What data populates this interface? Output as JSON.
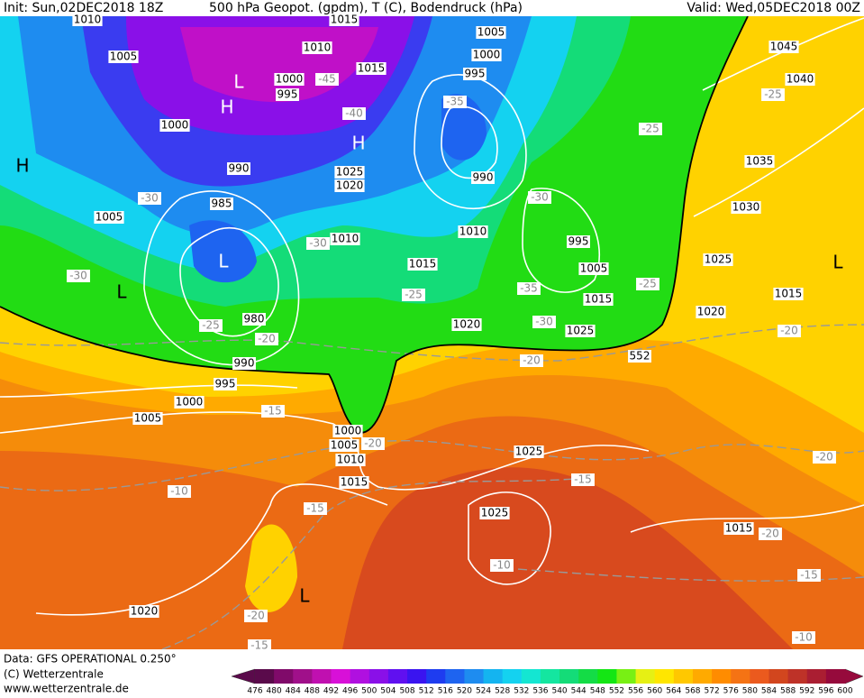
{
  "header": {
    "init": "Init: Sun,02DEC2018 18Z",
    "title": "500 hPa Geopot. (gpdm), T (C), Bodendruck (hPa)",
    "valid": "Valid: Wed,05DEC2018 00Z"
  },
  "footer": {
    "data": "Data: GFS OPERATIONAL 0.250°",
    "copyright": "(C) Wetterzentrale",
    "url": "www.wetterzentrale.de"
  },
  "scale": {
    "labels": [
      "476",
      "480",
      "484",
      "488",
      "492",
      "496",
      "500",
      "504",
      "508",
      "512",
      "516",
      "520",
      "524",
      "528",
      "532",
      "536",
      "540",
      "544",
      "548",
      "552",
      "556",
      "560",
      "564",
      "568",
      "572",
      "576",
      "580",
      "584",
      "588",
      "592",
      "596",
      "600"
    ],
    "colors": [
      "#5a0a4b",
      "#800a6a",
      "#a0108a",
      "#c010b0",
      "#d810d8",
      "#b010e0",
      "#8a10e8",
      "#6010f0",
      "#3a14f0",
      "#1e3cf0",
      "#1e64f0",
      "#1e8cf0",
      "#14b4f0",
      "#14d2f0",
      "#14e6d2",
      "#14e6a0",
      "#14dc78",
      "#14dc46",
      "#14e614",
      "#78f014",
      "#e6f014",
      "#ffe600",
      "#ffc800",
      "#ffaa00",
      "#ff8c00",
      "#f57314",
      "#eb5a1e",
      "#d2461e",
      "#be3228",
      "#aa1e32",
      "#960a3c"
    ]
  },
  "pressure_labels": [
    "1010",
    "1015",
    "1005",
    "1005",
    "1010",
    "1000",
    "1045",
    "1015",
    "1000",
    "995",
    "1040",
    "995",
    "1000",
    "1035",
    "990",
    "1025",
    "1020",
    "990",
    "985",
    "1030",
    "1005",
    "1010",
    "1010",
    "995",
    "1025",
    "1015",
    "1005",
    "1015",
    "1015",
    "980",
    "1020",
    "1020",
    "1025",
    "990",
    "995",
    "1000",
    "1005",
    "1000",
    "1005",
    "1010",
    "1025",
    "1015",
    "1025",
    "1015",
    "1020"
  ],
  "temperature_labels": [
    "-45",
    "-40",
    "-35",
    "-25",
    "-25",
    "-30",
    "-30",
    "-30",
    "-30",
    "-25",
    "-35",
    "-25",
    "-30",
    "-25",
    "-20",
    "-20",
    "-20",
    "-15",
    "-20",
    "-20",
    "-10",
    "-15",
    "-15",
    "-20",
    "-10",
    "-15",
    "-20",
    "-15",
    "-10"
  ],
  "height_labels": [
    "552"
  ],
  "centers": [
    "H",
    "L",
    "H",
    "H",
    "L",
    "L",
    "L",
    "L"
  ]
}
